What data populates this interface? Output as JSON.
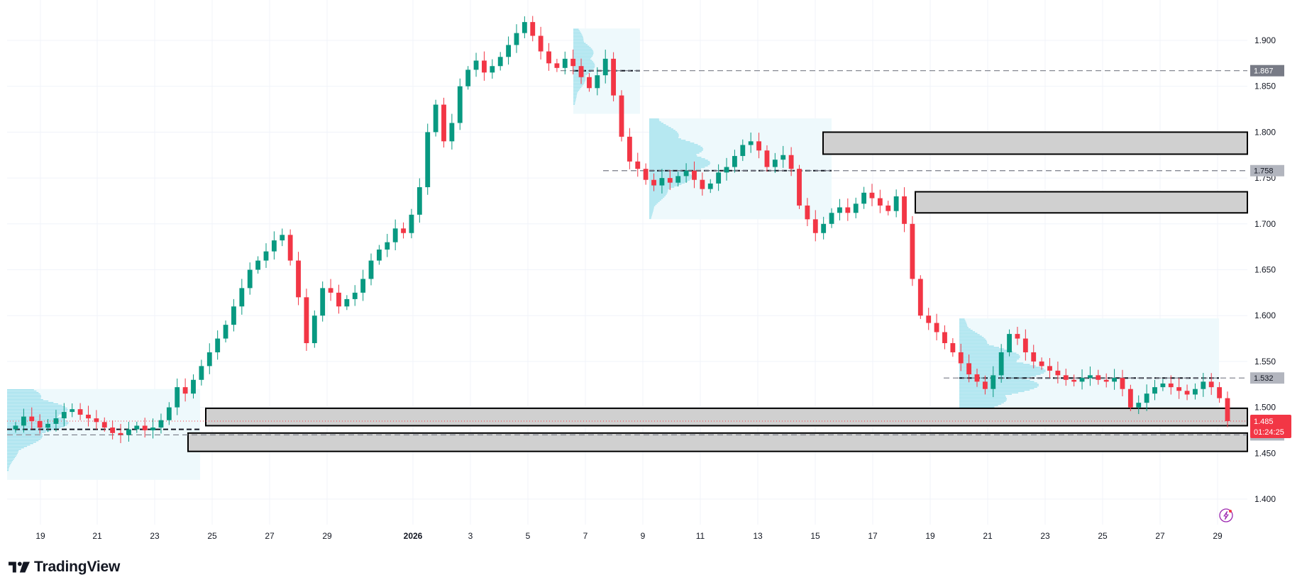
{
  "chart_data": {
    "type": "candlestick",
    "y_ticks": [
      "1.900",
      "1.850",
      "1.800",
      "1.750",
      "1.700",
      "1.650",
      "1.600",
      "1.550",
      "1.500",
      "1.450",
      "1.400"
    ],
    "x_ticks": [
      "19",
      "21",
      "23",
      "25",
      "27",
      "29",
      "2026",
      "3",
      "5",
      "7",
      "9",
      "11",
      "13",
      "15",
      "17",
      "19",
      "21",
      "23",
      "25",
      "27",
      "29"
    ],
    "ylim": [
      1.375,
      1.945
    ],
    "grid": true,
    "colors": {
      "up": "#089981",
      "down": "#f23645",
      "zone_fill": "#d0d0d0",
      "profile": "#7fd6e6",
      "profile_bg": "#eef9fc",
      "last_badge": "#f23645"
    },
    "close_series": [
      1.48,
      1.49,
      1.485,
      1.478,
      1.482,
      1.488,
      1.495,
      1.498,
      1.492,
      1.488,
      1.484,
      1.478,
      1.472,
      1.47,
      1.476,
      1.48,
      1.475,
      1.478,
      1.486,
      1.5,
      1.522,
      1.515,
      1.53,
      1.545,
      1.56,
      1.575,
      1.59,
      1.61,
      1.63,
      1.65,
      1.66,
      1.67,
      1.682,
      1.688,
      1.66,
      1.62,
      1.57,
      1.6,
      1.63,
      1.625,
      1.61,
      1.618,
      1.625,
      1.64,
      1.66,
      1.672,
      1.68,
      1.695,
      1.69,
      1.71,
      1.74,
      1.8,
      1.83,
      1.79,
      1.81,
      1.85,
      1.868,
      1.878,
      1.865,
      1.872,
      1.882,
      1.895,
      1.908,
      1.92,
      1.905,
      1.888,
      1.875,
      1.87,
      1.88,
      1.872,
      1.86,
      1.848,
      1.862,
      1.88,
      1.84,
      1.795,
      1.768,
      1.76,
      1.748,
      1.742,
      1.75,
      1.745,
      1.752,
      1.758,
      1.748,
      1.738,
      1.744,
      1.756,
      1.762,
      1.774,
      1.786,
      1.79,
      1.78,
      1.762,
      1.77,
      1.775,
      1.76,
      1.72,
      1.705,
      1.69,
      1.7,
      1.712,
      1.718,
      1.712,
      1.722,
      1.734,
      1.728,
      1.72,
      1.714,
      1.73,
      1.7,
      1.64,
      1.6,
      1.592,
      1.582,
      1.57,
      1.56,
      1.548,
      1.536,
      1.528,
      1.52,
      1.535,
      1.56,
      1.58,
      1.575,
      1.56,
      1.55,
      1.545,
      1.54,
      1.535,
      1.53,
      1.528,
      1.532,
      1.535,
      1.53,
      1.528,
      1.532,
      1.52,
      1.5,
      1.505,
      1.515,
      1.522,
      1.526,
      1.522,
      1.518,
      1.514,
      1.52,
      1.528,
      1.522,
      1.51,
      1.485
    ],
    "zones": [
      {
        "top": 1.8,
        "bottom": 1.776
      },
      {
        "top": 1.735,
        "bottom": 1.712
      },
      {
        "top": 1.499,
        "bottom": 1.48
      },
      {
        "top": 1.472,
        "bottom": 1.452
      }
    ],
    "price_levels": [
      {
        "label": "1.867",
        "value": 1.867
      },
      {
        "label": "1.758",
        "value": 1.758
      },
      {
        "label": "1.532",
        "value": 1.532
      },
      {
        "label": "1.470",
        "value": 1.47
      }
    ],
    "last_price": {
      "label": "1.485",
      "value": 1.485,
      "countdown": "01:24:25"
    }
  },
  "brand": {
    "name": "TradingView",
    "logo_icon": "tradingview-logo-icon"
  },
  "icons": {
    "snapshot": "lightning-icon"
  }
}
